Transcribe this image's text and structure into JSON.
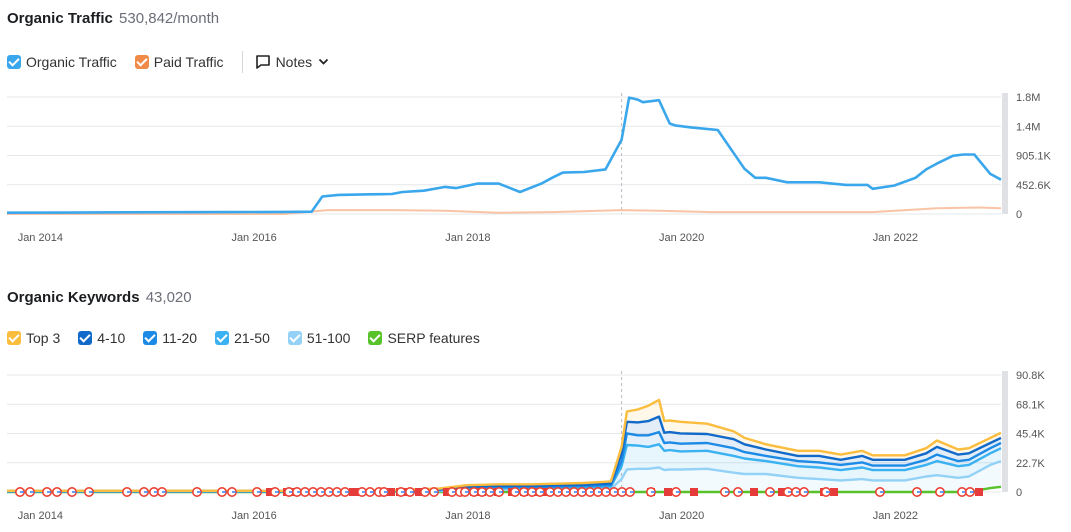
{
  "traffic": {
    "title": "Organic Traffic",
    "metric": "530,842/month",
    "legend": [
      {
        "label": "Organic Traffic",
        "color": "#3aa7ec",
        "checked": true
      },
      {
        "label": "Paid Traffic",
        "color": "#f08a48",
        "checked": true
      }
    ],
    "notes_label": "Notes",
    "icons": {
      "notes": "notes-icon",
      "chevron": "chevron-down-icon"
    }
  },
  "keywords": {
    "title": "Organic Keywords",
    "metric": "43,020",
    "legend": [
      {
        "label": "Top 3",
        "color": "#fbbd3e",
        "checked": true
      },
      {
        "label": "4-10",
        "color": "#1169c9",
        "checked": true
      },
      {
        "label": "11-20",
        "color": "#1d8ae6",
        "checked": true
      },
      {
        "label": "21-50",
        "color": "#3ab1f1",
        "checked": true
      },
      {
        "label": "51-100",
        "color": "#93d2f6",
        "checked": true
      },
      {
        "label": "SERP features",
        "color": "#57c22a",
        "checked": true
      }
    ]
  },
  "chart_data": [
    {
      "type": "line",
      "title": "Organic Traffic",
      "x_ticks": [
        "Jan 2014",
        "Jan 2016",
        "Jan 2018",
        "Jan 2020",
        "Jan 2022"
      ],
      "y_ticks": [
        "0",
        "452.6K",
        "905.1K",
        "1.4M",
        "1.8M"
      ],
      "ylim": [
        0,
        1810000
      ],
      "xlim": [
        2013.9,
        2023.2
      ],
      "grid": true,
      "marker_x": 2019.65,
      "series": [
        {
          "name": "Organic Traffic",
          "color": "#3aa7ec",
          "x": [
            2013.9,
            2014.5,
            2015.0,
            2015.5,
            2016.0,
            2016.5,
            2016.75,
            2016.85,
            2017.0,
            2017.3,
            2017.5,
            2017.6,
            2017.8,
            2018.0,
            2018.1,
            2018.3,
            2018.5,
            2018.7,
            2018.9,
            2019.0,
            2019.1,
            2019.3,
            2019.5,
            2019.65,
            2019.72,
            2019.8,
            2019.85,
            2020.0,
            2020.1,
            2020.15,
            2020.3,
            2020.55,
            2020.8,
            2020.9,
            2021.0,
            2021.2,
            2021.5,
            2021.75,
            2021.95,
            2022.0,
            2022.2,
            2022.4,
            2022.5,
            2022.6,
            2022.75,
            2022.85,
            2022.95,
            2023.1,
            2023.2
          ],
          "y": [
            20000,
            22000,
            26000,
            28000,
            30000,
            33000,
            35000,
            270000,
            295000,
            305000,
            310000,
            340000,
            360000,
            420000,
            400000,
            470000,
            470000,
            340000,
            470000,
            560000,
            640000,
            650000,
            690000,
            1150000,
            1800000,
            1770000,
            1730000,
            1760000,
            1400000,
            1370000,
            1340000,
            1300000,
            700000,
            560000,
            560000,
            490000,
            490000,
            450000,
            450000,
            390000,
            440000,
            560000,
            690000,
            780000,
            900000,
            920000,
            920000,
            620000,
            530000
          ]
        },
        {
          "name": "Paid Traffic",
          "color": "#f9c4a6",
          "x": [
            2013.9,
            2016.5,
            2016.9,
            2017.5,
            2018.0,
            2018.5,
            2019.0,
            2019.65,
            2020.0,
            2020.5,
            2021.0,
            2021.5,
            2022.0,
            2022.6,
            2023.0,
            2023.2
          ],
          "y": [
            0,
            0,
            60000,
            60000,
            50000,
            20000,
            30000,
            60000,
            50000,
            30000,
            30000,
            30000,
            30000,
            90000,
            100000,
            90000
          ]
        }
      ]
    },
    {
      "type": "area",
      "title": "Organic Keywords",
      "x_ticks": [
        "Jan 2014",
        "Jan 2016",
        "Jan 2018",
        "Jan 2020",
        "Jan 2022"
      ],
      "y_ticks": [
        "0",
        "22.7K",
        "45.4K",
        "68.1K",
        "90.8K"
      ],
      "ylim": [
        0,
        90800
      ],
      "xlim": [
        2013.9,
        2023.2
      ],
      "grid": true,
      "stacked": true,
      "x": [
        2013.9,
        2014.5,
        2015.5,
        2016.5,
        2017.5,
        2017.95,
        2018.2,
        2018.5,
        2018.8,
        2019.3,
        2019.55,
        2019.65,
        2019.7,
        2019.8,
        2019.9,
        2020.0,
        2020.05,
        2020.1,
        2020.2,
        2020.45,
        2020.7,
        2020.8,
        2021.0,
        2021.3,
        2021.5,
        2021.7,
        2021.9,
        2022.0,
        2022.3,
        2022.5,
        2022.6,
        2022.8,
        2022.9,
        2023.1,
        2023.2
      ],
      "series": [
        {
          "name": "SERP features",
          "color": "#57c22a",
          "values": [
            0,
            0,
            0,
            0,
            0,
            0,
            0,
            0,
            0,
            0,
            0,
            0,
            0,
            0,
            0,
            0,
            0,
            0,
            0,
            0,
            0,
            0,
            0,
            0,
            0,
            0,
            0,
            0,
            0,
            0,
            0,
            0,
            0,
            3000,
            4000
          ]
        },
        {
          "name": "51-100",
          "color": "#93d2f6",
          "values": [
            300,
            300,
            300,
            300,
            400,
            800,
            1500,
            1800,
            1800,
            2200,
            2500,
            10000,
            17500,
            18000,
            18000,
            19000,
            17000,
            17500,
            17500,
            18000,
            15000,
            14000,
            14000,
            11000,
            10000,
            9000,
            10000,
            9000,
            9000,
            12000,
            13000,
            11000,
            12000,
            18000,
            20000
          ]
        },
        {
          "name": "21-50",
          "color": "#3ab1f1",
          "values": [
            200,
            200,
            200,
            200,
            300,
            600,
            1000,
            1200,
            1200,
            1500,
            1800,
            10000,
            19000,
            18000,
            17000,
            18000,
            15000,
            15000,
            14000,
            14000,
            13000,
            12000,
            10000,
            9000,
            9000,
            8000,
            9000,
            8000,
            8000,
            9000,
            11000,
            9000,
            9000,
            9000,
            10000
          ]
        },
        {
          "name": "11-20",
          "color": "#1d8ae6",
          "values": [
            150,
            150,
            150,
            150,
            200,
            400,
            800,
            900,
            900,
            1000,
            1200,
            4000,
            9000,
            8000,
            9000,
            9500,
            6000,
            6000,
            6000,
            6000,
            6000,
            5000,
            4000,
            4000,
            4000,
            4000,
            4000,
            3500,
            3500,
            4000,
            5000,
            4000,
            4000,
            4000,
            4000
          ]
        },
        {
          "name": "4-10",
          "color": "#1169c9",
          "values": [
            150,
            150,
            150,
            150,
            200,
            400,
            800,
            900,
            900,
            1000,
            1200,
            6000,
            9000,
            10000,
            11000,
            12000,
            8000,
            8000,
            8000,
            7000,
            7000,
            6000,
            5000,
            4000,
            5000,
            4000,
            5000,
            4500,
            4500,
            5000,
            6000,
            5000,
            5000,
            4000,
            4000
          ]
        },
        {
          "name": "Top 3",
          "color": "#fbbd3e",
          "values": [
            100,
            100,
            100,
            100,
            200,
            500,
            1200,
            1200,
            1200,
            1300,
            1500,
            5000,
            8000,
            10000,
            12000,
            13000,
            9000,
            9000,
            9000,
            8000,
            6000,
            5000,
            4000,
            4000,
            4000,
            4000,
            4000,
            3500,
            3500,
            4000,
            5000,
            4000,
            4000,
            4000,
            4000
          ]
        }
      ]
    }
  ]
}
